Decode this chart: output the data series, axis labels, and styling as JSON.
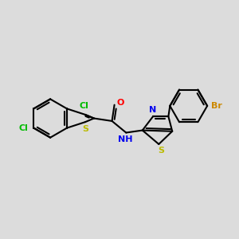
{
  "bg_color": "#dcdcdc",
  "bond_color": "#000000",
  "bond_width": 1.5,
  "atom_colors": {
    "Cl": "#00bb00",
    "S": "#bbbb00",
    "O": "#ff0000",
    "N": "#0000ee",
    "Br": "#cc8800",
    "C": "#000000",
    "H": "#555555"
  },
  "figsize": [
    3.0,
    3.0
  ],
  "dpi": 100
}
